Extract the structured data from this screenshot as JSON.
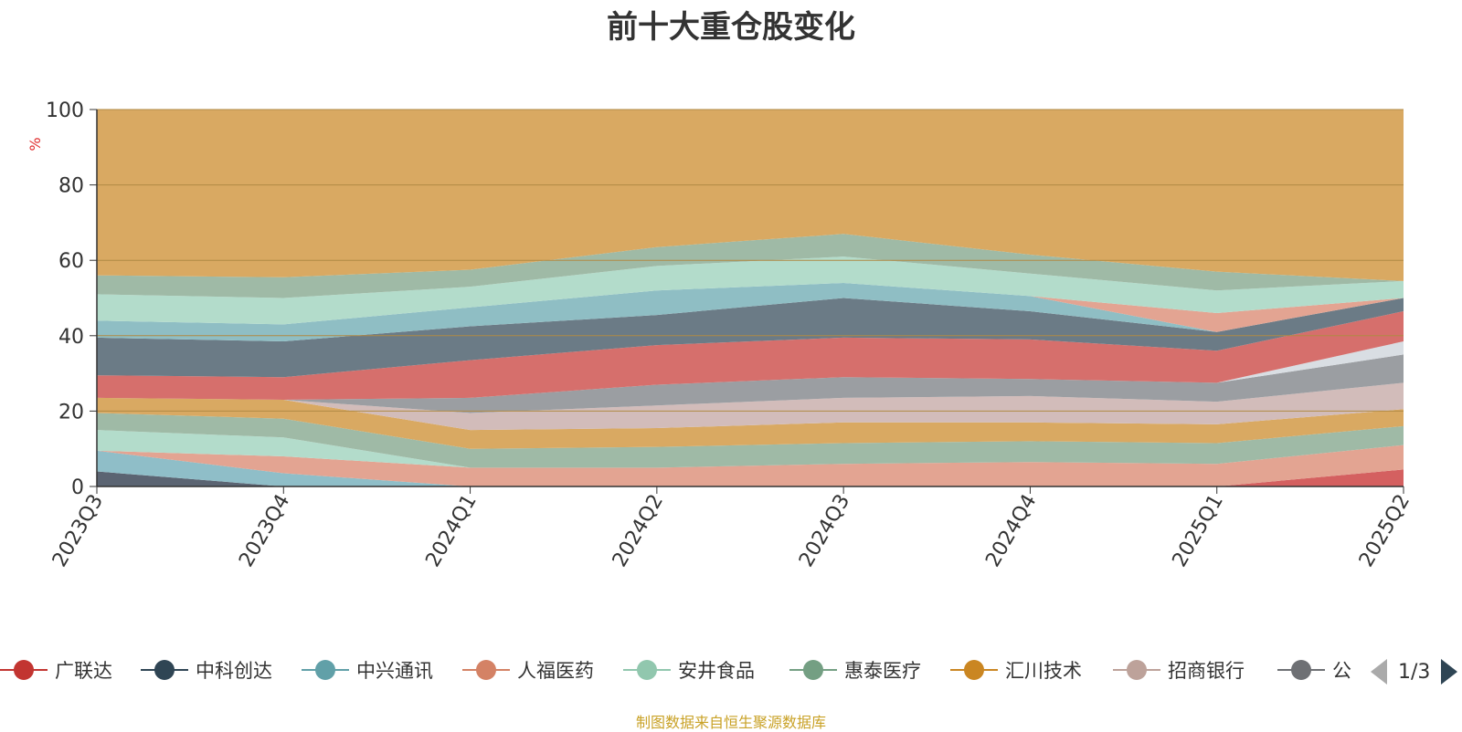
{
  "title": "前十大重仓股变化",
  "source_note": "制图数据来自恒生聚源数据库",
  "source_color": "#c9a227",
  "pager": {
    "text": "1/3"
  },
  "chart_data": {
    "type": "area",
    "stacked": true,
    "ylabel": "%",
    "ylim": [
      0,
      100
    ],
    "yticks": [
      0,
      20,
      40,
      60,
      80,
      100
    ],
    "x": [
      "2023Q3",
      "2023Q4",
      "2024Q1",
      "2024Q2",
      "2024Q3",
      "2024Q4",
      "2025Q1",
      "2025Q2"
    ],
    "grid": true,
    "legend_position": "bottom",
    "series": [
      {
        "name": "",
        "color": "#5b6472",
        "values": [
          4,
          0,
          0,
          0,
          0,
          0,
          0,
          0
        ]
      },
      {
        "name": "",
        "color": "#d46060",
        "values": [
          0,
          0,
          0,
          0,
          0,
          0,
          0,
          4.5
        ]
      },
      {
        "name": "",
        "color": "#8fbec8",
        "values": [
          5.5,
          3.5,
          0,
          0,
          0,
          0,
          0,
          0
        ]
      },
      {
        "name": "",
        "color": "#e3a492",
        "values": [
          0,
          4.5,
          5,
          5,
          6,
          6.5,
          6,
          6.5
        ]
      },
      {
        "name": "",
        "color": "#b3dccb",
        "values": [
          5.5,
          5,
          0,
          0,
          0,
          0,
          0,
          0
        ]
      },
      {
        "name": "",
        "color": "#9fbaa6",
        "values": [
          4.5,
          5,
          5,
          5.5,
          5.5,
          5.5,
          5.5,
          5
        ]
      },
      {
        "name": "",
        "color": "#d9a962",
        "values": [
          4,
          5,
          5,
          5,
          5.5,
          5,
          5,
          4.5
        ]
      },
      {
        "name": "",
        "color": "#d2bcba",
        "values": [
          0,
          0,
          4.5,
          6,
          6.5,
          7,
          6,
          7
        ]
      },
      {
        "name": "",
        "color": "#9b9ea2",
        "values": [
          0,
          0,
          4,
          5.5,
          5.5,
          4.5,
          5,
          7.5
        ]
      },
      {
        "name": "",
        "color": "#d9dee3",
        "values": [
          0,
          0,
          0,
          0,
          0,
          0,
          0,
          3.5
        ]
      },
      {
        "name": "",
        "color": "#d66f6c",
        "values": [
          6,
          6,
          10,
          10.5,
          10.5,
          10.5,
          8.5,
          8
        ]
      },
      {
        "name": "",
        "color": "#6b7b86",
        "values": [
          10,
          9.5,
          9,
          8,
          10.5,
          7.5,
          5,
          3.5
        ]
      },
      {
        "name": "",
        "color": "#8fbec4",
        "values": [
          4.5,
          4.5,
          5,
          6.5,
          4,
          4,
          0,
          0
        ]
      },
      {
        "name": "",
        "color": "#e3a492",
        "values": [
          0,
          0,
          0,
          0,
          0,
          0,
          5,
          0
        ]
      },
      {
        "name": "",
        "color": "#b3dccb",
        "values": [
          7,
          7,
          5.5,
          6.5,
          7,
          6,
          6,
          4.5
        ]
      },
      {
        "name": "",
        "color": "#9fbaa6",
        "values": [
          5,
          5.5,
          4.5,
          5,
          6,
          5,
          5,
          0
        ]
      },
      {
        "name": "",
        "color": "#d9a962",
        "values": [
          44,
          44.5,
          42.5,
          36.5,
          33,
          38.5,
          43,
          45.5
        ]
      }
    ]
  },
  "legend": [
    {
      "label": "广联达",
      "color": "#c23531"
    },
    {
      "label": "中科创达",
      "color": "#2f4554"
    },
    {
      "label": "中兴通讯",
      "color": "#61a0a8"
    },
    {
      "label": "人福医药",
      "color": "#d48265"
    },
    {
      "label": "安井食品",
      "color": "#91c7ae"
    },
    {
      "label": "惠泰医疗",
      "color": "#749f83"
    },
    {
      "label": "汇川技术",
      "color": "#ca8622"
    },
    {
      "label": "招商银行",
      "color": "#bda29a"
    },
    {
      "label": "公牛集团",
      "color": "#6e7074"
    }
  ]
}
